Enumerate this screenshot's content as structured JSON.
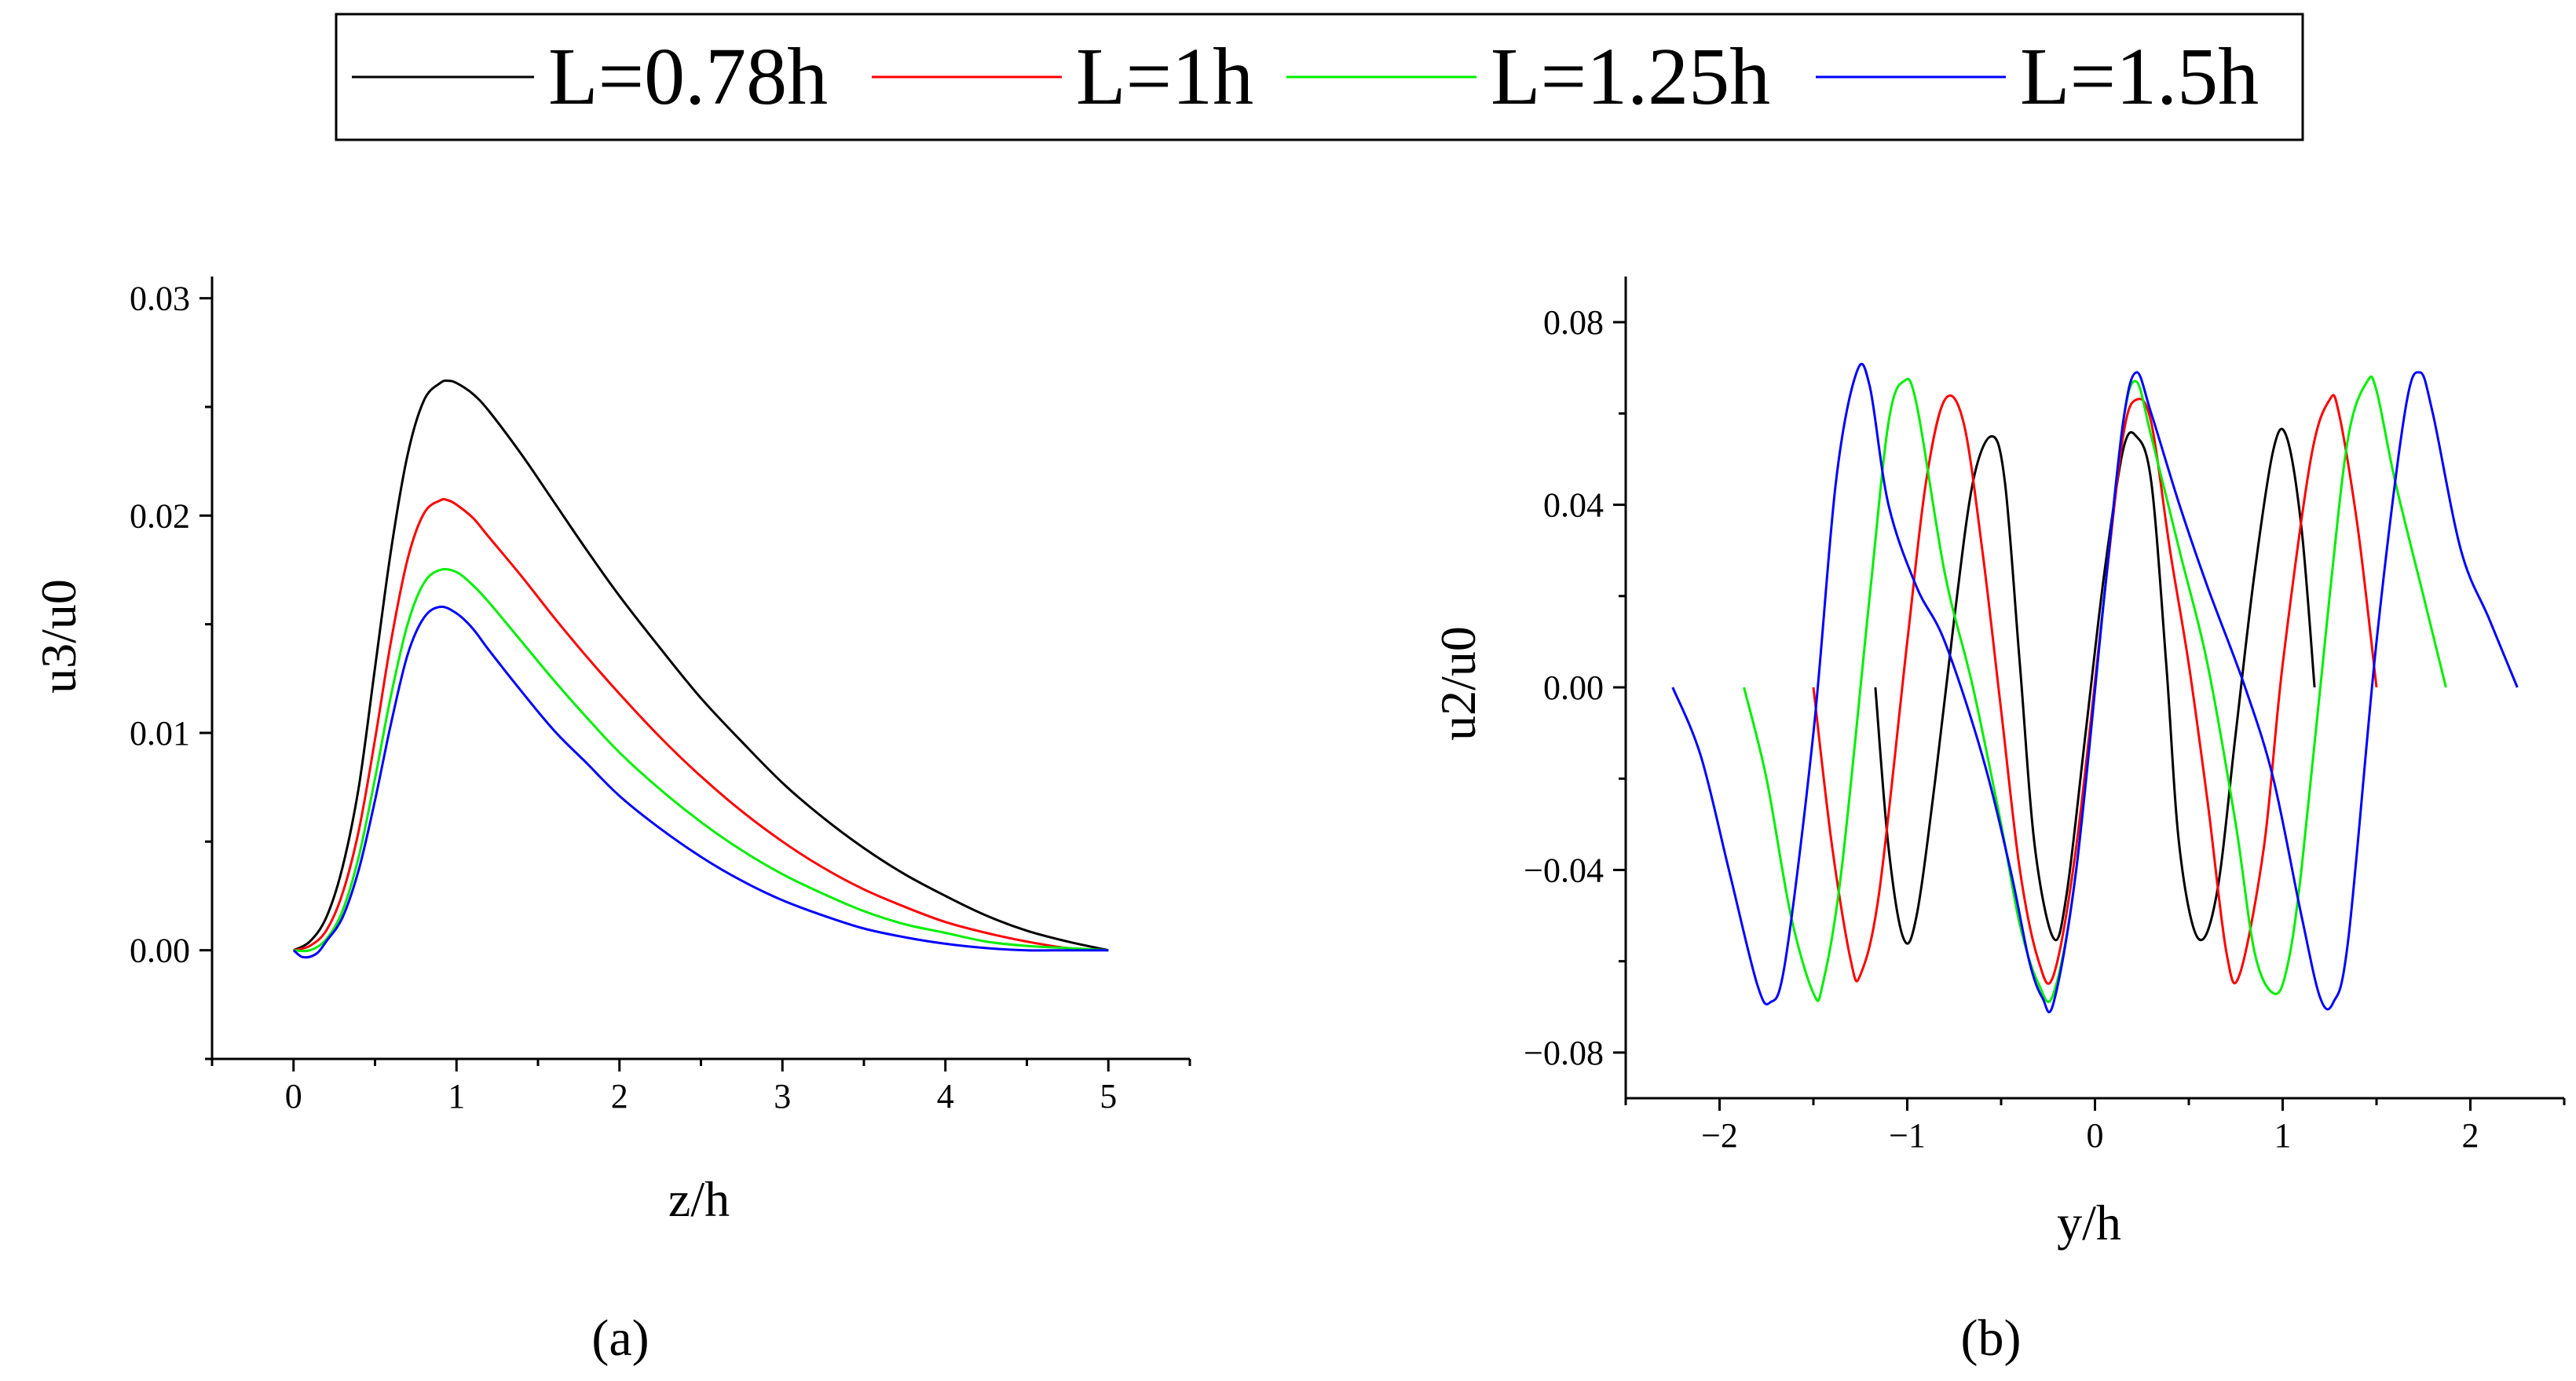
{
  "legend": {
    "entries": [
      {
        "label": "L=0.78h",
        "color": "#000000"
      },
      {
        "label": "L=1h",
        "color": "#ff0000"
      },
      {
        "label": "L=1.25h",
        "color": "#00ee00"
      },
      {
        "label": "L=1.5h",
        "color": "#0000ff"
      }
    ]
  },
  "chart_data": [
    {
      "type": "line",
      "panel_label": "(a)",
      "xlabel": "z/h",
      "ylabel": "u3/u0",
      "xlim": [
        -0.5,
        5.5
      ],
      "ylim": [
        -0.005,
        0.031
      ],
      "xticks": [
        0,
        1,
        2,
        3,
        4,
        5
      ],
      "xtick_labels": [
        "0",
        "1",
        "2",
        "3",
        "4",
        "5"
      ],
      "yticks": [
        0,
        0.01,
        0.02,
        0.03
      ],
      "ytick_labels": [
        "0.00",
        "0.01",
        "0.02",
        "0.03"
      ],
      "series": [
        {
          "name": "L=0.78h",
          "color": "#000000",
          "x": [
            0,
            0.1,
            0.2,
            0.3,
            0.4,
            0.5,
            0.6,
            0.7,
            0.8,
            0.9,
            0.95,
            1.0,
            1.1,
            1.2,
            1.4,
            1.6,
            1.8,
            2.0,
            2.25,
            2.5,
            2.75,
            3.0,
            3.25,
            3.5,
            3.75,
            4.0,
            4.25,
            4.5,
            4.75,
            5.0
          ],
          "y": [
            0,
            0.0004,
            0.0015,
            0.0038,
            0.0075,
            0.013,
            0.0185,
            0.0228,
            0.0253,
            0.0261,
            0.0262,
            0.0261,
            0.0256,
            0.0248,
            0.0228,
            0.0206,
            0.0184,
            0.0163,
            0.0139,
            0.0116,
            0.0096,
            0.0077,
            0.0061,
            0.0047,
            0.0035,
            0.0025,
            0.0016,
            0.0009,
            0.0004,
            0
          ]
        },
        {
          "name": "L=1h",
          "color": "#ff0000",
          "x": [
            0,
            0.1,
            0.2,
            0.3,
            0.4,
            0.5,
            0.6,
            0.7,
            0.8,
            0.9,
            0.95,
            1.0,
            1.1,
            1.2,
            1.4,
            1.6,
            1.8,
            2.0,
            2.25,
            2.5,
            2.75,
            3.0,
            3.25,
            3.5,
            3.75,
            4.0,
            4.25,
            4.5,
            4.75,
            5.0
          ],
          "y": [
            0,
            0.0002,
            0.0009,
            0.0026,
            0.0055,
            0.0097,
            0.0143,
            0.018,
            0.0201,
            0.0207,
            0.0207,
            0.0205,
            0.0199,
            0.019,
            0.0172,
            0.0153,
            0.0135,
            0.0118,
            0.0098,
            0.008,
            0.0064,
            0.005,
            0.0038,
            0.0028,
            0.002,
            0.0013,
            0.0008,
            0.0004,
            0.0001,
            0
          ]
        },
        {
          "name": "L=1.25h",
          "color": "#00ee00",
          "x": [
            0,
            0.1,
            0.2,
            0.3,
            0.4,
            0.5,
            0.6,
            0.7,
            0.8,
            0.9,
            1.0,
            1.1,
            1.2,
            1.4,
            1.6,
            1.8,
            2.0,
            2.25,
            2.5,
            2.75,
            3.0,
            3.25,
            3.5,
            3.75,
            4.0,
            4.25,
            4.5,
            4.75,
            5.0
          ],
          "y": [
            0,
            0.0,
            0.0005,
            0.0018,
            0.0043,
            0.0079,
            0.0118,
            0.015,
            0.0169,
            0.0175,
            0.0174,
            0.0168,
            0.016,
            0.0142,
            0.0124,
            0.0107,
            0.0091,
            0.0074,
            0.0059,
            0.0046,
            0.0035,
            0.0026,
            0.0018,
            0.0012,
            0.0008,
            0.0004,
            0.0002,
            0.0001,
            0
          ]
        },
        {
          "name": "L=1.5h",
          "color": "#0000ff",
          "x": [
            0,
            0.05,
            0.1,
            0.15,
            0.2,
            0.3,
            0.4,
            0.5,
            0.6,
            0.7,
            0.8,
            0.9,
            1.0,
            1.1,
            1.2,
            1.4,
            1.6,
            1.8,
            2.0,
            2.25,
            2.5,
            2.75,
            3.0,
            3.25,
            3.5,
            3.75,
            4.0,
            4.25,
            4.5,
            4.75,
            5.0
          ],
          "y": [
            0,
            -0.0003,
            -0.0003,
            -0.0001,
            0.0004,
            0.0015,
            0.0037,
            0.0069,
            0.0105,
            0.0136,
            0.0153,
            0.0158,
            0.0155,
            0.0148,
            0.0138,
            0.0119,
            0.0101,
            0.0086,
            0.0071,
            0.0056,
            0.0043,
            0.0032,
            0.0023,
            0.0016,
            0.001,
            0.0006,
            0.0003,
            0.0001,
            0.0,
            0.0,
            0
          ]
        }
      ]
    },
    {
      "type": "line",
      "panel_label": "(b)",
      "xlabel": "y/h",
      "ylabel": "u2/u0",
      "xlim": [
        -2.5,
        2.5
      ],
      "ylim": [
        -0.09,
        0.09
      ],
      "xticks": [
        -2,
        -1,
        0,
        1,
        2
      ],
      "xtick_labels": [
        "−2",
        "−1",
        "0",
        "1",
        "2"
      ],
      "yticks": [
        -0.08,
        -0.04,
        0,
        0.04,
        0.08
      ],
      "ytick_labels": [
        "−0.08",
        "−0.04",
        "0.00",
        "0.04",
        "0.08"
      ],
      "series": [
        {
          "name": "L=0.78h",
          "color": "#000000",
          "x": [
            -1.17,
            -1.1,
            -1.02,
            -0.95,
            -0.85,
            -0.75,
            -0.65,
            -0.55,
            -0.48,
            -0.4,
            -0.32,
            -0.22,
            -0.15,
            -0.05,
            0.05,
            0.15,
            0.22,
            0.3,
            0.38,
            0.45,
            0.55,
            0.65,
            0.75,
            0.85,
            0.95,
            1.02,
            1.1,
            1.17
          ],
          "y": [
            0,
            -0.035,
            -0.055,
            -0.05,
            -0.02,
            0.015,
            0.045,
            0.055,
            0.045,
            0.005,
            -0.035,
            -0.055,
            -0.045,
            -0.01,
            0.025,
            0.052,
            0.055,
            0.045,
            0.005,
            -0.035,
            -0.055,
            -0.045,
            -0.01,
            0.025,
            0.052,
            0.055,
            0.035,
            0
          ]
        },
        {
          "name": "L=1h",
          "color": "#ff0000",
          "x": [
            -1.5,
            -1.4,
            -1.3,
            -1.25,
            -1.15,
            -1.0,
            -0.9,
            -0.8,
            -0.7,
            -0.6,
            -0.5,
            -0.4,
            -0.3,
            -0.22,
            -0.1,
            0.05,
            0.15,
            0.22,
            0.3,
            0.4,
            0.5,
            0.6,
            0.7,
            0.77,
            0.9,
            1.0,
            1.15,
            1.25,
            1.3,
            1.4,
            1.5
          ],
          "y": [
            0,
            -0.035,
            -0.06,
            -0.063,
            -0.045,
            0.01,
            0.045,
            0.063,
            0.058,
            0.03,
            -0.005,
            -0.04,
            -0.06,
            -0.063,
            -0.035,
            0.02,
            0.055,
            0.063,
            0.058,
            0.03,
            0.005,
            -0.025,
            -0.058,
            -0.063,
            -0.035,
            0.005,
            0.05,
            0.063,
            0.06,
            0.035,
            0
          ]
        },
        {
          "name": "L=1.25h",
          "color": "#00ee00",
          "x": [
            -1.87,
            -1.75,
            -1.62,
            -1.5,
            -1.45,
            -1.35,
            -1.2,
            -1.1,
            -1.02,
            -0.95,
            -0.8,
            -0.65,
            -0.5,
            -0.4,
            -0.3,
            -0.22,
            -0.1,
            0.05,
            0.15,
            0.22,
            0.3,
            0.45,
            0.6,
            0.75,
            0.85,
            0.95,
            1.02,
            1.1,
            1.25,
            1.35,
            1.45,
            1.5,
            1.6,
            1.75,
            1.87
          ],
          "y": [
            0,
            -0.02,
            -0.05,
            -0.067,
            -0.065,
            -0.04,
            0.02,
            0.058,
            0.067,
            0.062,
            0.025,
            0.0,
            -0.03,
            -0.052,
            -0.065,
            -0.067,
            -0.04,
            0.02,
            0.058,
            0.067,
            0.055,
            0.03,
            0.005,
            -0.03,
            -0.058,
            -0.067,
            -0.062,
            -0.04,
            0.02,
            0.055,
            0.067,
            0.065,
            0.045,
            0.02,
            0
          ]
        },
        {
          "name": "L=1.5h",
          "color": "#0000ff",
          "x": [
            -2.25,
            -2.1,
            -1.95,
            -1.8,
            -1.73,
            -1.65,
            -1.5,
            -1.38,
            -1.27,
            -1.2,
            -1.1,
            -0.95,
            -0.8,
            -0.6,
            -0.45,
            -0.35,
            -0.28,
            -0.22,
            -0.1,
            0.05,
            0.15,
            0.22,
            0.3,
            0.45,
            0.6,
            0.8,
            0.95,
            1.1,
            1.2,
            1.27,
            1.35,
            1.5,
            1.65,
            1.73,
            1.8,
            1.95,
            2.1,
            2.25
          ],
          "y": [
            0,
            -0.015,
            -0.04,
            -0.065,
            -0.069,
            -0.06,
            -0.01,
            0.045,
            0.069,
            0.066,
            0.04,
            0.022,
            0.01,
            -0.015,
            -0.04,
            -0.06,
            -0.068,
            -0.069,
            -0.04,
            0.02,
            0.058,
            0.069,
            0.06,
            0.04,
            0.022,
            0.0,
            -0.02,
            -0.05,
            -0.068,
            -0.069,
            -0.055,
            0.01,
            0.06,
            0.069,
            0.06,
            0.03,
            0.015,
            0
          ]
        }
      ]
    }
  ]
}
